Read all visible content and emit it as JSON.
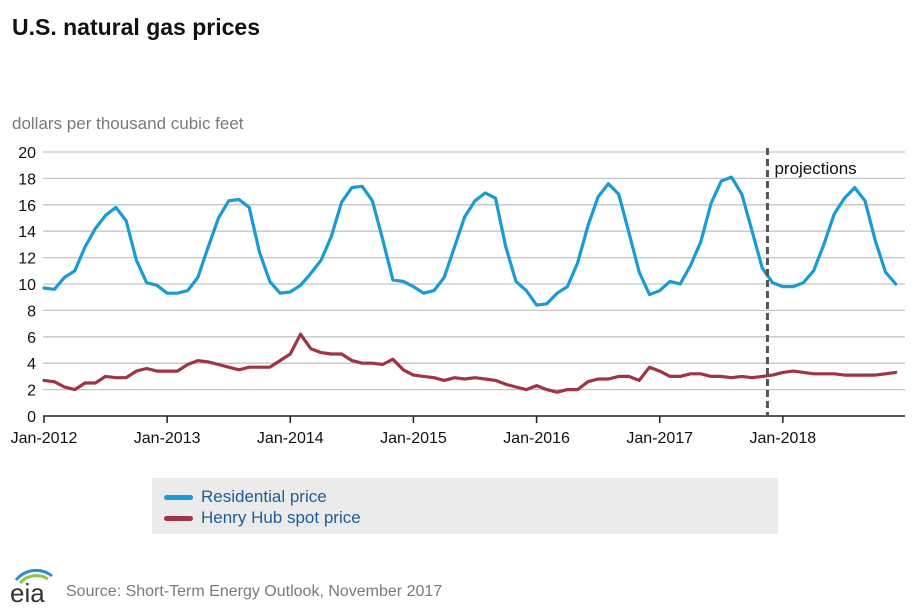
{
  "title": "U.S. natural gas prices",
  "source": "Source: Short-Term Energy Outlook, November 2017",
  "logo_text": "eia",
  "chart_data": {
    "type": "line",
    "title": "U.S. natural gas prices",
    "ylabel": "dollars per thousand cubic feet",
    "xlabel": "",
    "ylim": [
      0,
      20
    ],
    "yticks": [
      "0",
      "2",
      "4",
      "6",
      "8",
      "10",
      "12",
      "14",
      "16",
      "18",
      "20"
    ],
    "x_start": "Jan-2012",
    "x_end": "Dec-2018",
    "xtick_labels": [
      "Jan-2012",
      "Jan-2013",
      "Jan-2014",
      "Jan-2015",
      "Jan-2016",
      "Jan-2017",
      "Jan-2018"
    ],
    "grid": true,
    "projection_marker": {
      "label": "projections",
      "month_index": 70.5
    },
    "legend": [
      "Residential price",
      "Henry Hub spot price"
    ],
    "series": [
      {
        "name": "Residential price",
        "color": "#1a9ad6",
        "values": [
          9.7,
          9.6,
          10.5,
          11.0,
          12.8,
          14.2,
          15.2,
          15.8,
          14.8,
          11.8,
          10.1,
          9.9,
          9.3,
          9.3,
          9.5,
          10.5,
          12.8,
          15.0,
          16.3,
          16.4,
          15.8,
          12.4,
          10.2,
          9.3,
          9.4,
          9.9,
          10.8,
          11.8,
          13.6,
          16.2,
          17.3,
          17.4,
          16.3,
          13.4,
          10.3,
          10.2,
          9.8,
          9.3,
          9.5,
          10.5,
          12.8,
          15.1,
          16.3,
          16.9,
          16.5,
          12.8,
          10.2,
          9.5,
          8.4,
          8.5,
          9.3,
          9.8,
          11.6,
          14.4,
          16.6,
          17.6,
          16.8,
          13.9,
          10.9,
          9.2,
          9.5,
          10.2,
          10.0,
          11.4,
          13.2,
          16.1,
          17.8,
          18.1,
          16.8,
          14.0,
          11.2,
          10.1,
          9.8,
          9.8,
          10.1,
          11.0,
          13.0,
          15.3,
          16.5,
          17.3,
          16.3,
          13.3,
          10.9,
          10.0
        ]
      },
      {
        "name": "Henry Hub spot price",
        "color": "#a03444",
        "values": [
          2.7,
          2.6,
          2.2,
          2.0,
          2.5,
          2.5,
          3.0,
          2.9,
          2.9,
          3.4,
          3.6,
          3.4,
          3.4,
          3.4,
          3.9,
          4.2,
          4.1,
          3.9,
          3.7,
          3.5,
          3.7,
          3.7,
          3.7,
          4.2,
          4.7,
          6.2,
          5.1,
          4.8,
          4.7,
          4.7,
          4.2,
          4.0,
          4.0,
          3.9,
          4.3,
          3.5,
          3.1,
          3.0,
          2.9,
          2.7,
          2.9,
          2.8,
          2.9,
          2.8,
          2.7,
          2.4,
          2.2,
          2.0,
          2.3,
          2.0,
          1.8,
          2.0,
          2.0,
          2.6,
          2.8,
          2.8,
          3.0,
          3.0,
          2.7,
          3.7,
          3.4,
          3.0,
          3.0,
          3.2,
          3.2,
          3.0,
          3.0,
          2.9,
          3.0,
          2.9,
          3.0,
          3.1,
          3.3,
          3.4,
          3.3,
          3.2,
          3.2,
          3.2,
          3.1,
          3.1,
          3.1,
          3.1,
          3.2,
          3.3
        ]
      }
    ]
  }
}
